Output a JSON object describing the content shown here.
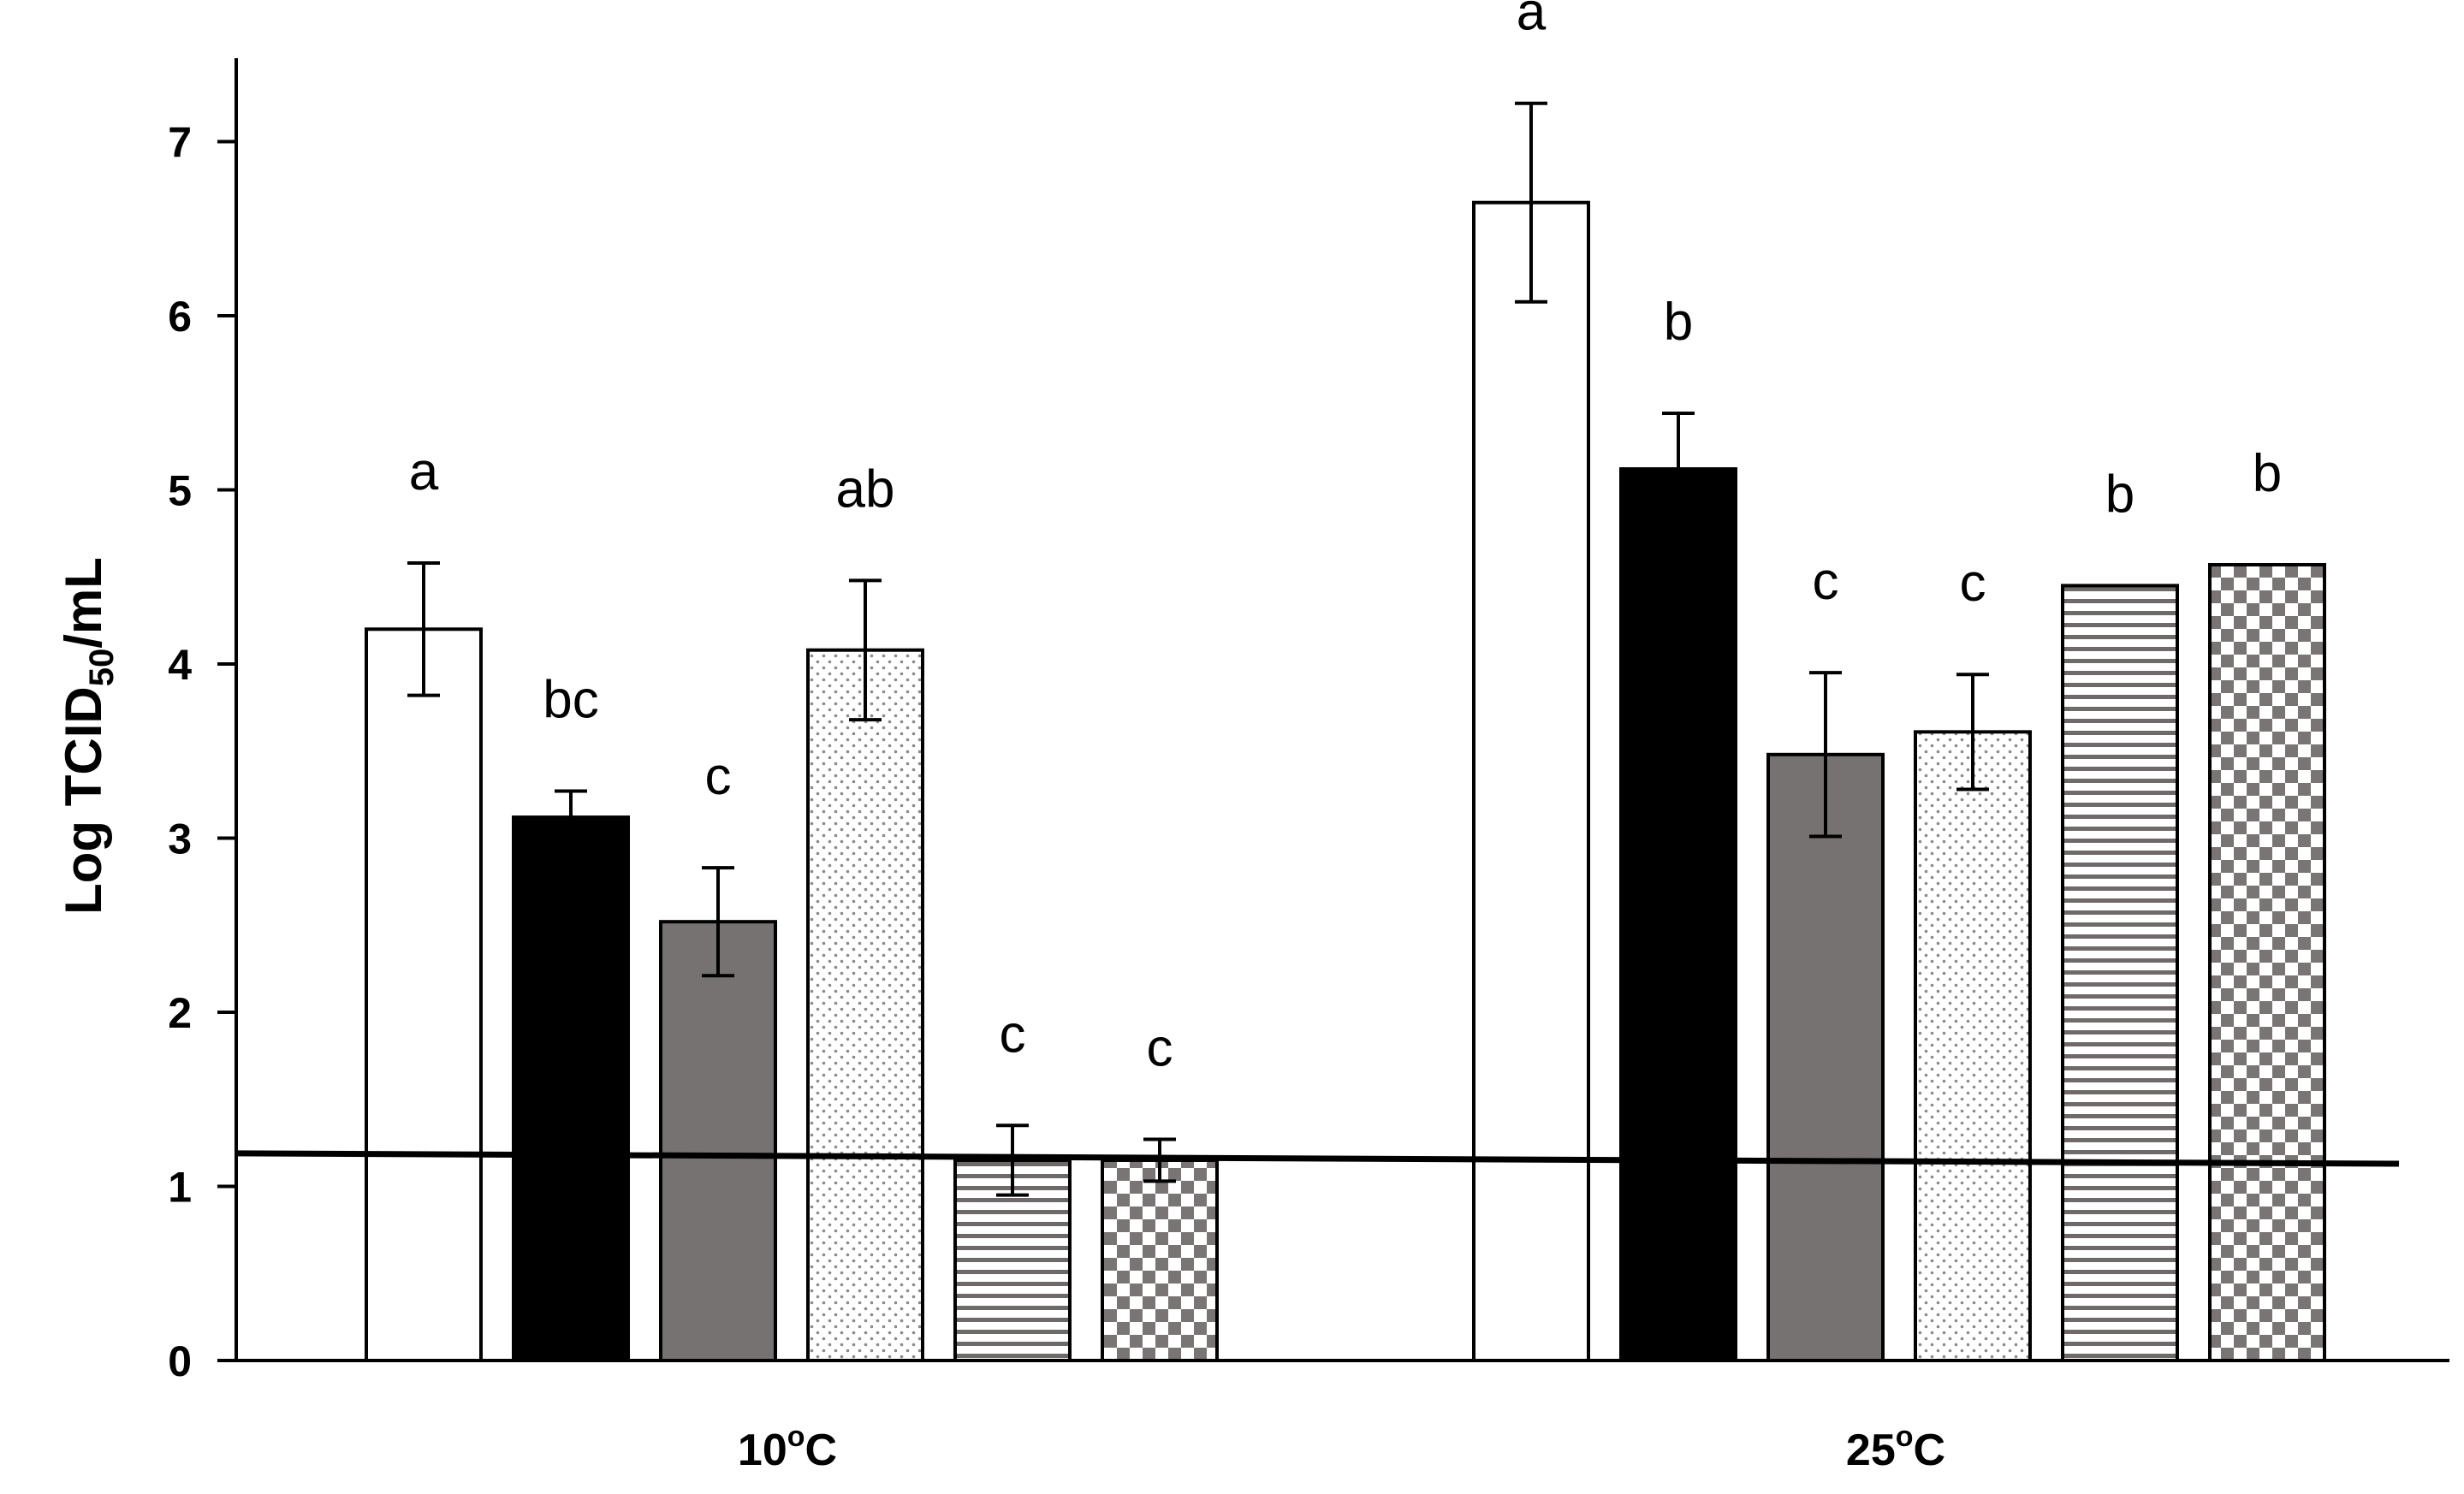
{
  "chart_data": {
    "type": "bar",
    "title": "",
    "ylabel": "Log TCID50/mL",
    "ylabel_parts": {
      "main": "Log TCID",
      "sub": "50",
      "tail": "/mL"
    },
    "xlabel": "",
    "ylim": [
      0,
      7.5
    ],
    "yticks": [
      0,
      1,
      2,
      3,
      4,
      5,
      6,
      7
    ],
    "grid": false,
    "legend": "none",
    "groups": [
      {
        "label": "10°C",
        "label_main": "10",
        "label_sup": "o",
        "label_tail": "C"
      },
      {
        "label": "25°C",
        "label_main": "25",
        "label_sup": "o",
        "label_tail": "C"
      }
    ],
    "series": [
      {
        "name": "series-1",
        "pattern": "white",
        "values": [
          4.2,
          6.65
        ],
        "errors": [
          0.38,
          0.57
        ],
        "letters": [
          "a",
          "a"
        ]
      },
      {
        "name": "series-2",
        "pattern": "black",
        "values": [
          3.12,
          5.12
        ],
        "errors": [
          0.15,
          0.32
        ],
        "letters": [
          "bc",
          "b"
        ]
      },
      {
        "name": "series-3",
        "pattern": "gray",
        "values": [
          2.52,
          3.48
        ],
        "errors": [
          0.31,
          0.47
        ],
        "letters": [
          "c",
          "c"
        ]
      },
      {
        "name": "series-4",
        "pattern": "dots",
        "values": [
          4.08,
          3.61
        ],
        "errors": [
          0.4,
          0.33
        ],
        "letters": [
          "ab",
          "c"
        ]
      },
      {
        "name": "series-5",
        "pattern": "horizontal",
        "values": [
          1.15,
          4.45
        ],
        "errors": [
          0.2,
          null
        ],
        "letters": [
          "c",
          "b"
        ]
      },
      {
        "name": "series-6",
        "pattern": "checker",
        "values": [
          1.15,
          4.57
        ],
        "errors": [
          0.12,
          null
        ],
        "letters": [
          "c",
          "b"
        ]
      }
    ],
    "detection_limit": {
      "start": 1.19,
      "end": 1.13
    }
  }
}
